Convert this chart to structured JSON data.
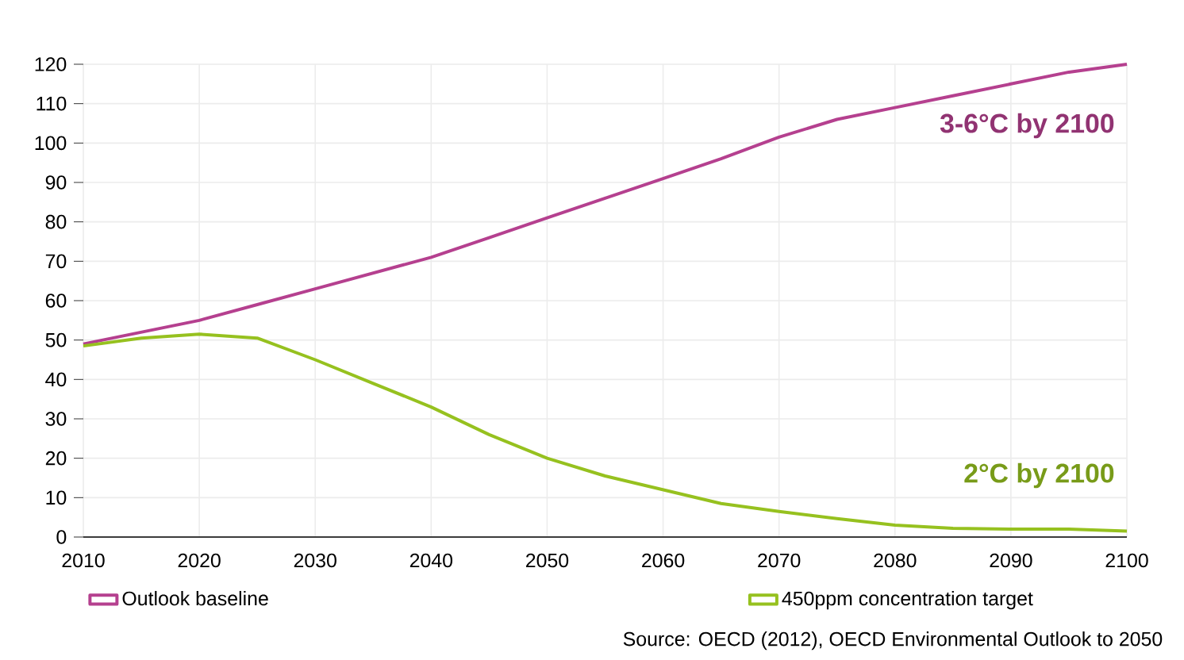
{
  "chart_data": {
    "type": "line",
    "x": [
      2010,
      2015,
      2020,
      2025,
      2030,
      2035,
      2040,
      2045,
      2050,
      2055,
      2060,
      2065,
      2070,
      2075,
      2080,
      2085,
      2090,
      2095,
      2100
    ],
    "series": [
      {
        "name": "Outlook baseline",
        "color": "#b5408f",
        "values": [
          49,
          52,
          55,
          59,
          63,
          67,
          71,
          76,
          81,
          86,
          91,
          96,
          101.5,
          106,
          109,
          112,
          115,
          118,
          120
        ]
      },
      {
        "name": "450ppm concentration target",
        "color": "#96c11f",
        "values": [
          48.5,
          50.5,
          51.5,
          50.5,
          45,
          39,
          33,
          26,
          20,
          15.5,
          12,
          8.5,
          6.5,
          4.7,
          3,
          2.2,
          2,
          2,
          1.5
        ]
      }
    ],
    "xlim": [
      2010,
      2100
    ],
    "xticks": [
      2010,
      2020,
      2030,
      2040,
      2050,
      2060,
      2070,
      2080,
      2090,
      2100
    ],
    "ylim": [
      0,
      120
    ],
    "yticks": [
      0,
      10,
      20,
      30,
      40,
      50,
      60,
      70,
      80,
      90,
      100,
      110,
      120
    ],
    "grid": true,
    "legend": "bottom",
    "marker": "none",
    "line_style": "solid",
    "annotations": [
      "3-6°C by 2100",
      "2°C by 2100",
      "Source: OECD (2012), OECD Environmental Outlook to 2050"
    ]
  }
}
